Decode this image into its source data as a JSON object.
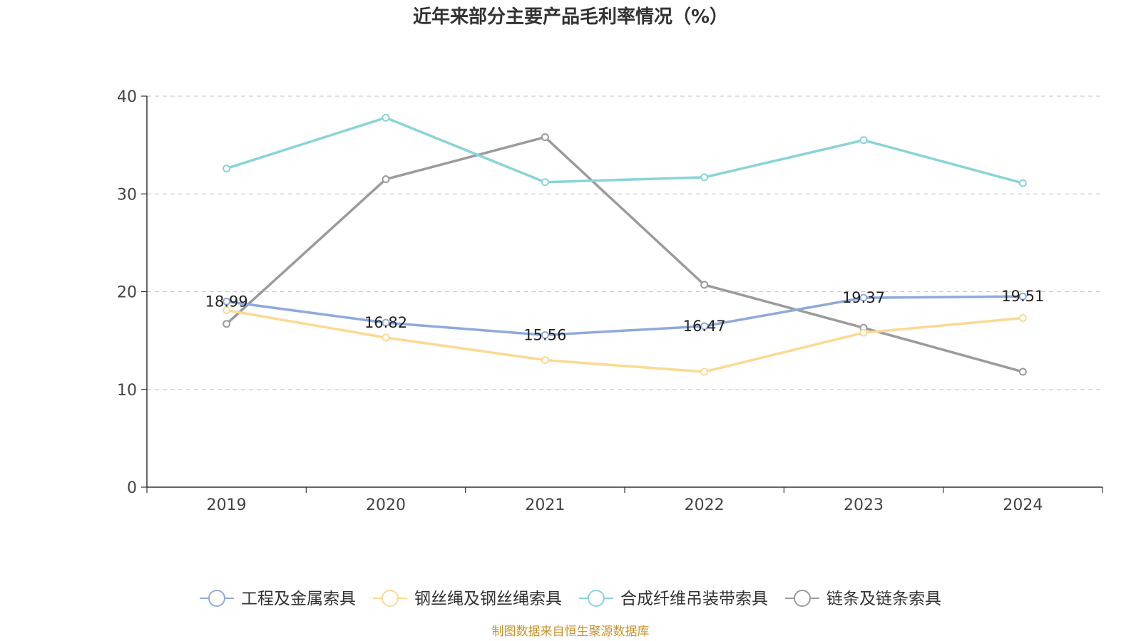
{
  "chart_data": {
    "type": "line",
    "title": "近年来部分主要产品毛利率情况（%）",
    "categories": [
      "2019",
      "2020",
      "2021",
      "2022",
      "2023",
      "2024"
    ],
    "ylim": [
      0,
      40
    ],
    "yticks": [
      "0",
      "10",
      "20",
      "30",
      "40"
    ],
    "grid": true,
    "legend_position": "bottom",
    "series": [
      {
        "name": "工程及金属索具",
        "color": "#8eaadb",
        "values": [
          18.99,
          16.82,
          15.56,
          16.47,
          19.37,
          19.51
        ],
        "labels": [
          "18.99",
          "16.82",
          "15.56",
          "16.47",
          "19.37",
          "19.51"
        ]
      },
      {
        "name": "钢丝绳及钢丝绳索具",
        "color": "#fbd992",
        "values": [
          18.1,
          15.3,
          13.0,
          11.8,
          15.8,
          17.3
        ]
      },
      {
        "name": "合成纤维吊装带索具",
        "color": "#89d4d8",
        "values": [
          32.6,
          37.8,
          31.2,
          31.7,
          35.5,
          31.1
        ]
      },
      {
        "name": "链条及链条索具",
        "color": "#9b9b9b",
        "values": [
          16.7,
          31.5,
          35.8,
          20.7,
          16.3,
          11.8
        ]
      }
    ]
  },
  "source_text": "制图数据来自恒生聚源数据库",
  "colors": {
    "axis": "#333333",
    "grid": "#cccccc",
    "source": "#c8922a"
  }
}
